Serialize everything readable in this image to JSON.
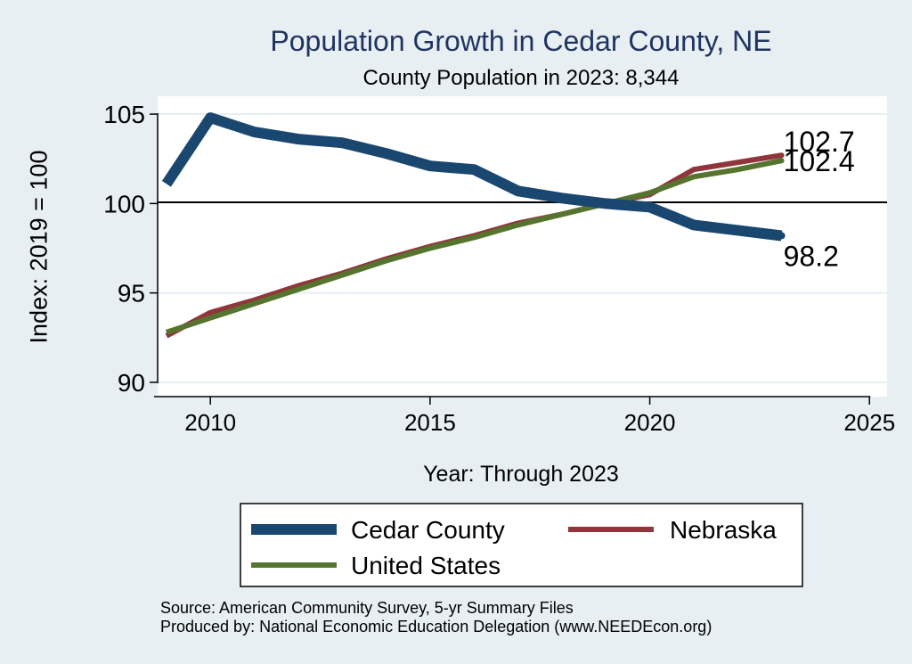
{
  "colors": {
    "background": "#e8eff2",
    "plot_background": "#ffffff",
    "title": "#1f3461",
    "cedar": "#1a4770",
    "nebraska": "#90353b",
    "us": "#55752f",
    "grid": "#e6eef1"
  },
  "chart_data": {
    "type": "line",
    "title": "Population Growth in Cedar County, NE",
    "subtitle": "County Population in 2023: 8,344",
    "xlabel": "Year: Through 2023",
    "ylabel": "Index: 2019 = 100",
    "xlim": [
      2008.8,
      2025.4
    ],
    "ylim": [
      89.2,
      106
    ],
    "xticks": [
      2010,
      2015,
      2020,
      2025
    ],
    "yticks": [
      90,
      95,
      100,
      105
    ],
    "reference_line": 100,
    "grid": true,
    "x": [
      2009,
      2010,
      2011,
      2012,
      2013,
      2014,
      2015,
      2016,
      2017,
      2018,
      2019,
      2020,
      2021,
      2022,
      2023
    ],
    "series": [
      {
        "name": "Cedar  County",
        "key": "cedar",
        "values": [
          101.1,
          104.8,
          104.0,
          103.6,
          103.4,
          102.8,
          102.1,
          101.9,
          100.7,
          100.3,
          100.0,
          99.8,
          98.8,
          98.5,
          98.2
        ],
        "end_label": "98.2"
      },
      {
        "name": "Nebraska",
        "key": "nebraska",
        "values": [
          92.6,
          93.9,
          94.6,
          95.4,
          96.1,
          96.9,
          97.6,
          98.2,
          98.9,
          99.4,
          100.0,
          100.5,
          101.9,
          102.3,
          102.7
        ],
        "end_label": "102.7"
      },
      {
        "name": "United States",
        "key": "us",
        "values": [
          92.8,
          93.6,
          94.4,
          95.2,
          96.0,
          96.8,
          97.5,
          98.1,
          98.8,
          99.4,
          100.0,
          100.6,
          101.5,
          101.9,
          102.4
        ],
        "end_label": "102.4"
      }
    ],
    "legend": {
      "position": "bottom",
      "entries": [
        "Cedar  County",
        "Nebraska",
        "United States"
      ]
    }
  },
  "source_line1": "Source: American Community Survey, 5-yr Summary Files",
  "source_line2": "Produced by: National Economic Education Delegation (www.NEEDEcon.org)"
}
